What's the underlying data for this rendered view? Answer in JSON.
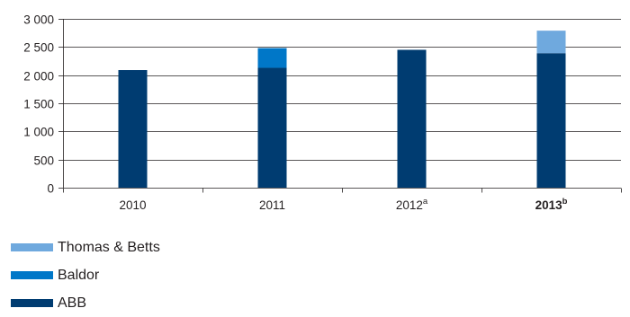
{
  "chart_data": {
    "type": "bar",
    "stacked": true,
    "categories": [
      {
        "label": "2010",
        "sup": "",
        "bold": false
      },
      {
        "label": "2011",
        "sup": "",
        "bold": false
      },
      {
        "label": "2012",
        "sup": "a",
        "bold": false
      },
      {
        "label": "2013",
        "sup": "b",
        "bold": true
      }
    ],
    "series": [
      {
        "name": "ABB",
        "color": "#003c71",
        "values": [
          2090,
          2130,
          2450,
          2390
        ]
      },
      {
        "name": "Baldor",
        "color": "#0077c8",
        "values": [
          0,
          350,
          0,
          0
        ]
      },
      {
        "name": "Thomas & Betts",
        "color": "#6fa9de",
        "values": [
          0,
          0,
          0,
          400
        ]
      }
    ],
    "yticks": [
      0,
      500,
      1000,
      1500,
      2000,
      2500,
      3000
    ],
    "ytick_labels": [
      "0",
      "500",
      "1 000",
      "1 500",
      "2 000",
      "2 500",
      "3 000"
    ],
    "ylim": [
      0,
      3000
    ],
    "legend_order": [
      "Thomas & Betts",
      "Baldor",
      "ABB"
    ],
    "grid": true
  }
}
